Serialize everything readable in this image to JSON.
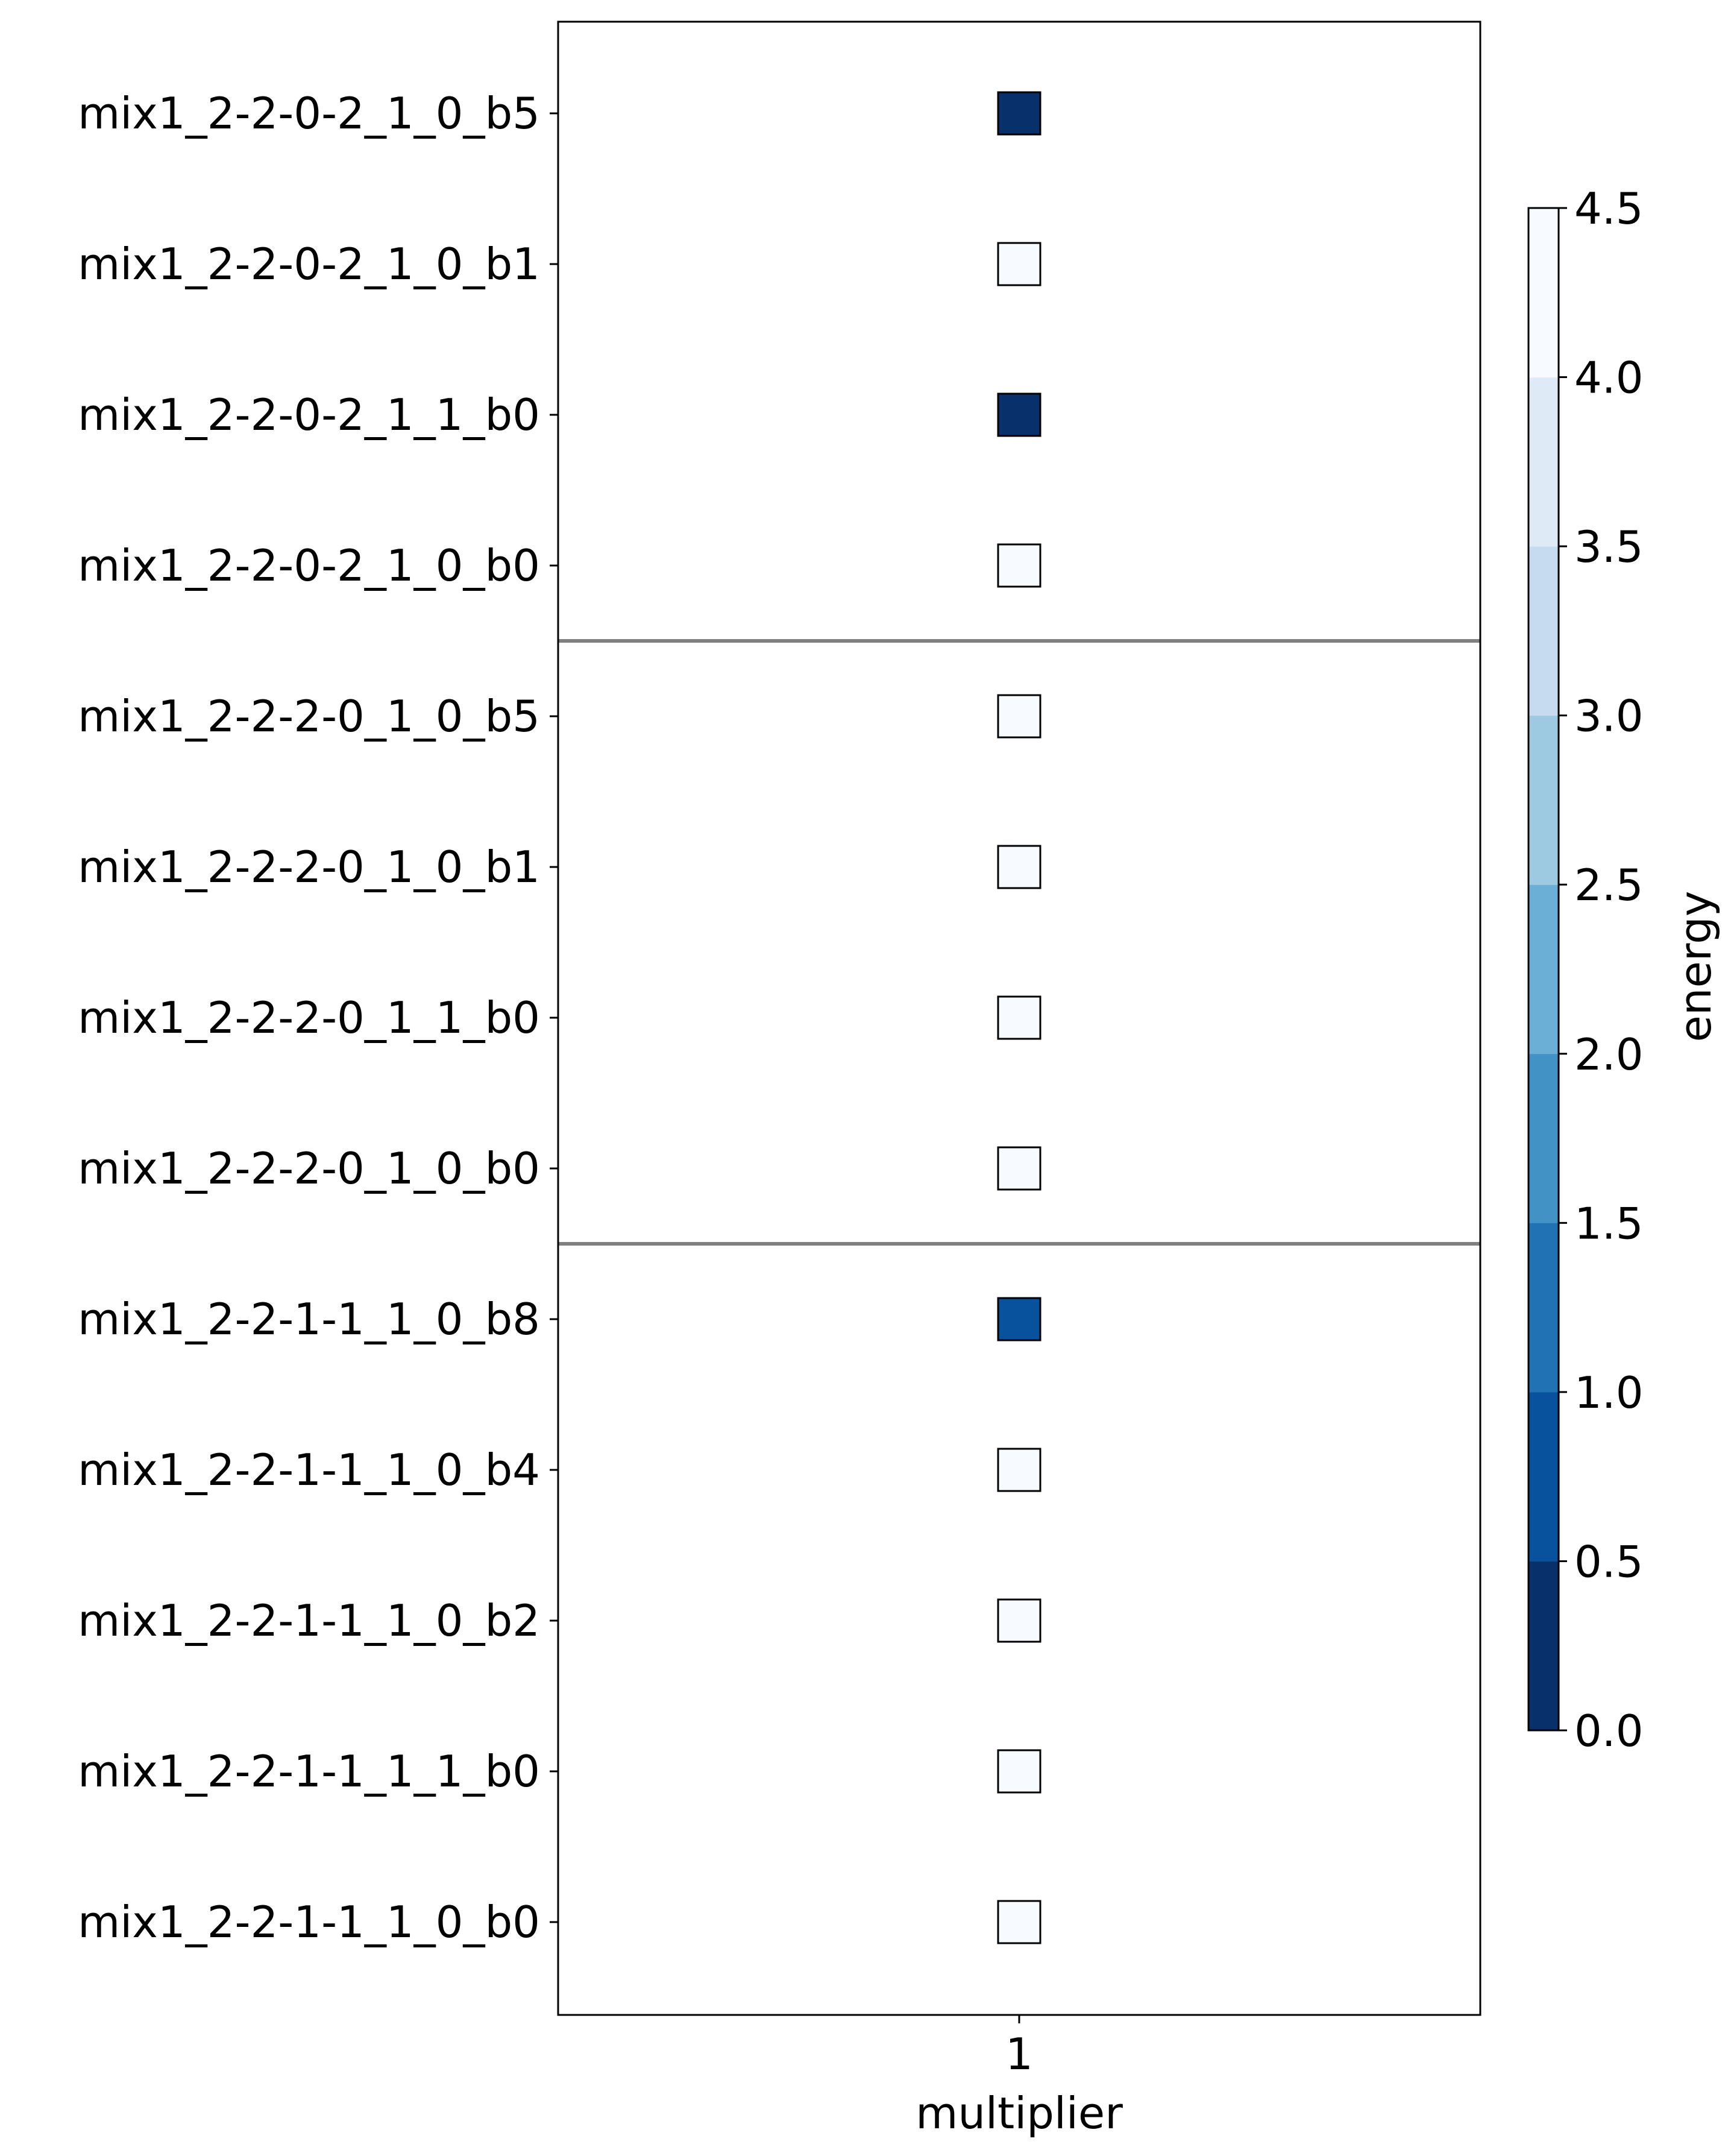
{
  "chart_data": {
    "type": "heatmap",
    "rows": [
      "mix1_2-2-0-2_1_0_b5",
      "mix1_2-2-0-2_1_0_b1",
      "mix1_2-2-0-2_1_1_b0",
      "mix1_2-2-0-2_1_0_b0",
      "mix1_2-2-2-0_1_0_b5",
      "mix1_2-2-2-0_1_0_b1",
      "mix1_2-2-2-0_1_1_b0",
      "mix1_2-2-2-0_1_0_b0",
      "mix1_2-2-1-1_1_0_b8",
      "mix1_2-2-1-1_1_0_b4",
      "mix1_2-2-1-1_1_0_b2",
      "mix1_2-2-1-1_1_1_b0",
      "mix1_2-2-1-1_1_0_b0"
    ],
    "columns": [
      "1"
    ],
    "values": [
      0.1,
      4.4,
      0.1,
      4.4,
      4.4,
      4.4,
      4.4,
      4.4,
      0.7,
      4.4,
      4.4,
      4.4,
      4.4
    ],
    "group_separators_after_row": [
      4,
      8
    ],
    "xlabel": "multiplier",
    "ylabel": "",
    "colorbar": {
      "label": "energy",
      "range": [
        0.0,
        4.5
      ],
      "ticks": [
        "0.0",
        "0.5",
        "1.0",
        "1.5",
        "2.0",
        "2.5",
        "3.0",
        "3.5",
        "4.0",
        "4.5"
      ],
      "colors": [
        "#08306b",
        "#08519c",
        "#2171b5",
        "#4292c6",
        "#6baed6",
        "#9ecae1",
        "#c6dbef",
        "#deebf7",
        "#f7fbff"
      ]
    },
    "separator_color": "#808080"
  }
}
